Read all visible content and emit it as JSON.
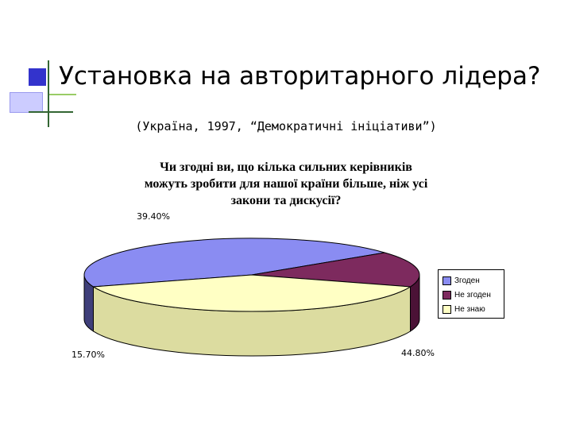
{
  "slide": {
    "title": "Установка на авторитарного лідера?",
    "subtitle": "(Україна, 1997, “Демократичні ініціативи”)"
  },
  "chart_data": {
    "type": "pie",
    "title_lines": [
      "Чи згодні ви, що кілька сильних керівників",
      "можуть зробити для нашої країни більше, ніж усі",
      "закони та дискусії?"
    ],
    "labels": [
      "Згоден",
      "Не згоден",
      "Не знаю"
    ],
    "values": [
      44.8,
      15.7,
      39.4
    ],
    "value_labels": [
      "44.80%",
      "15.70%",
      "39.40%"
    ],
    "colors": [
      "#8a8cf2",
      "#7d2a5e",
      "#ffffc4"
    ],
    "side_colors": [
      "#3f3f7a",
      "#4b1236",
      "#dcdca0"
    ],
    "legend_position": "right",
    "three_d": true
  }
}
